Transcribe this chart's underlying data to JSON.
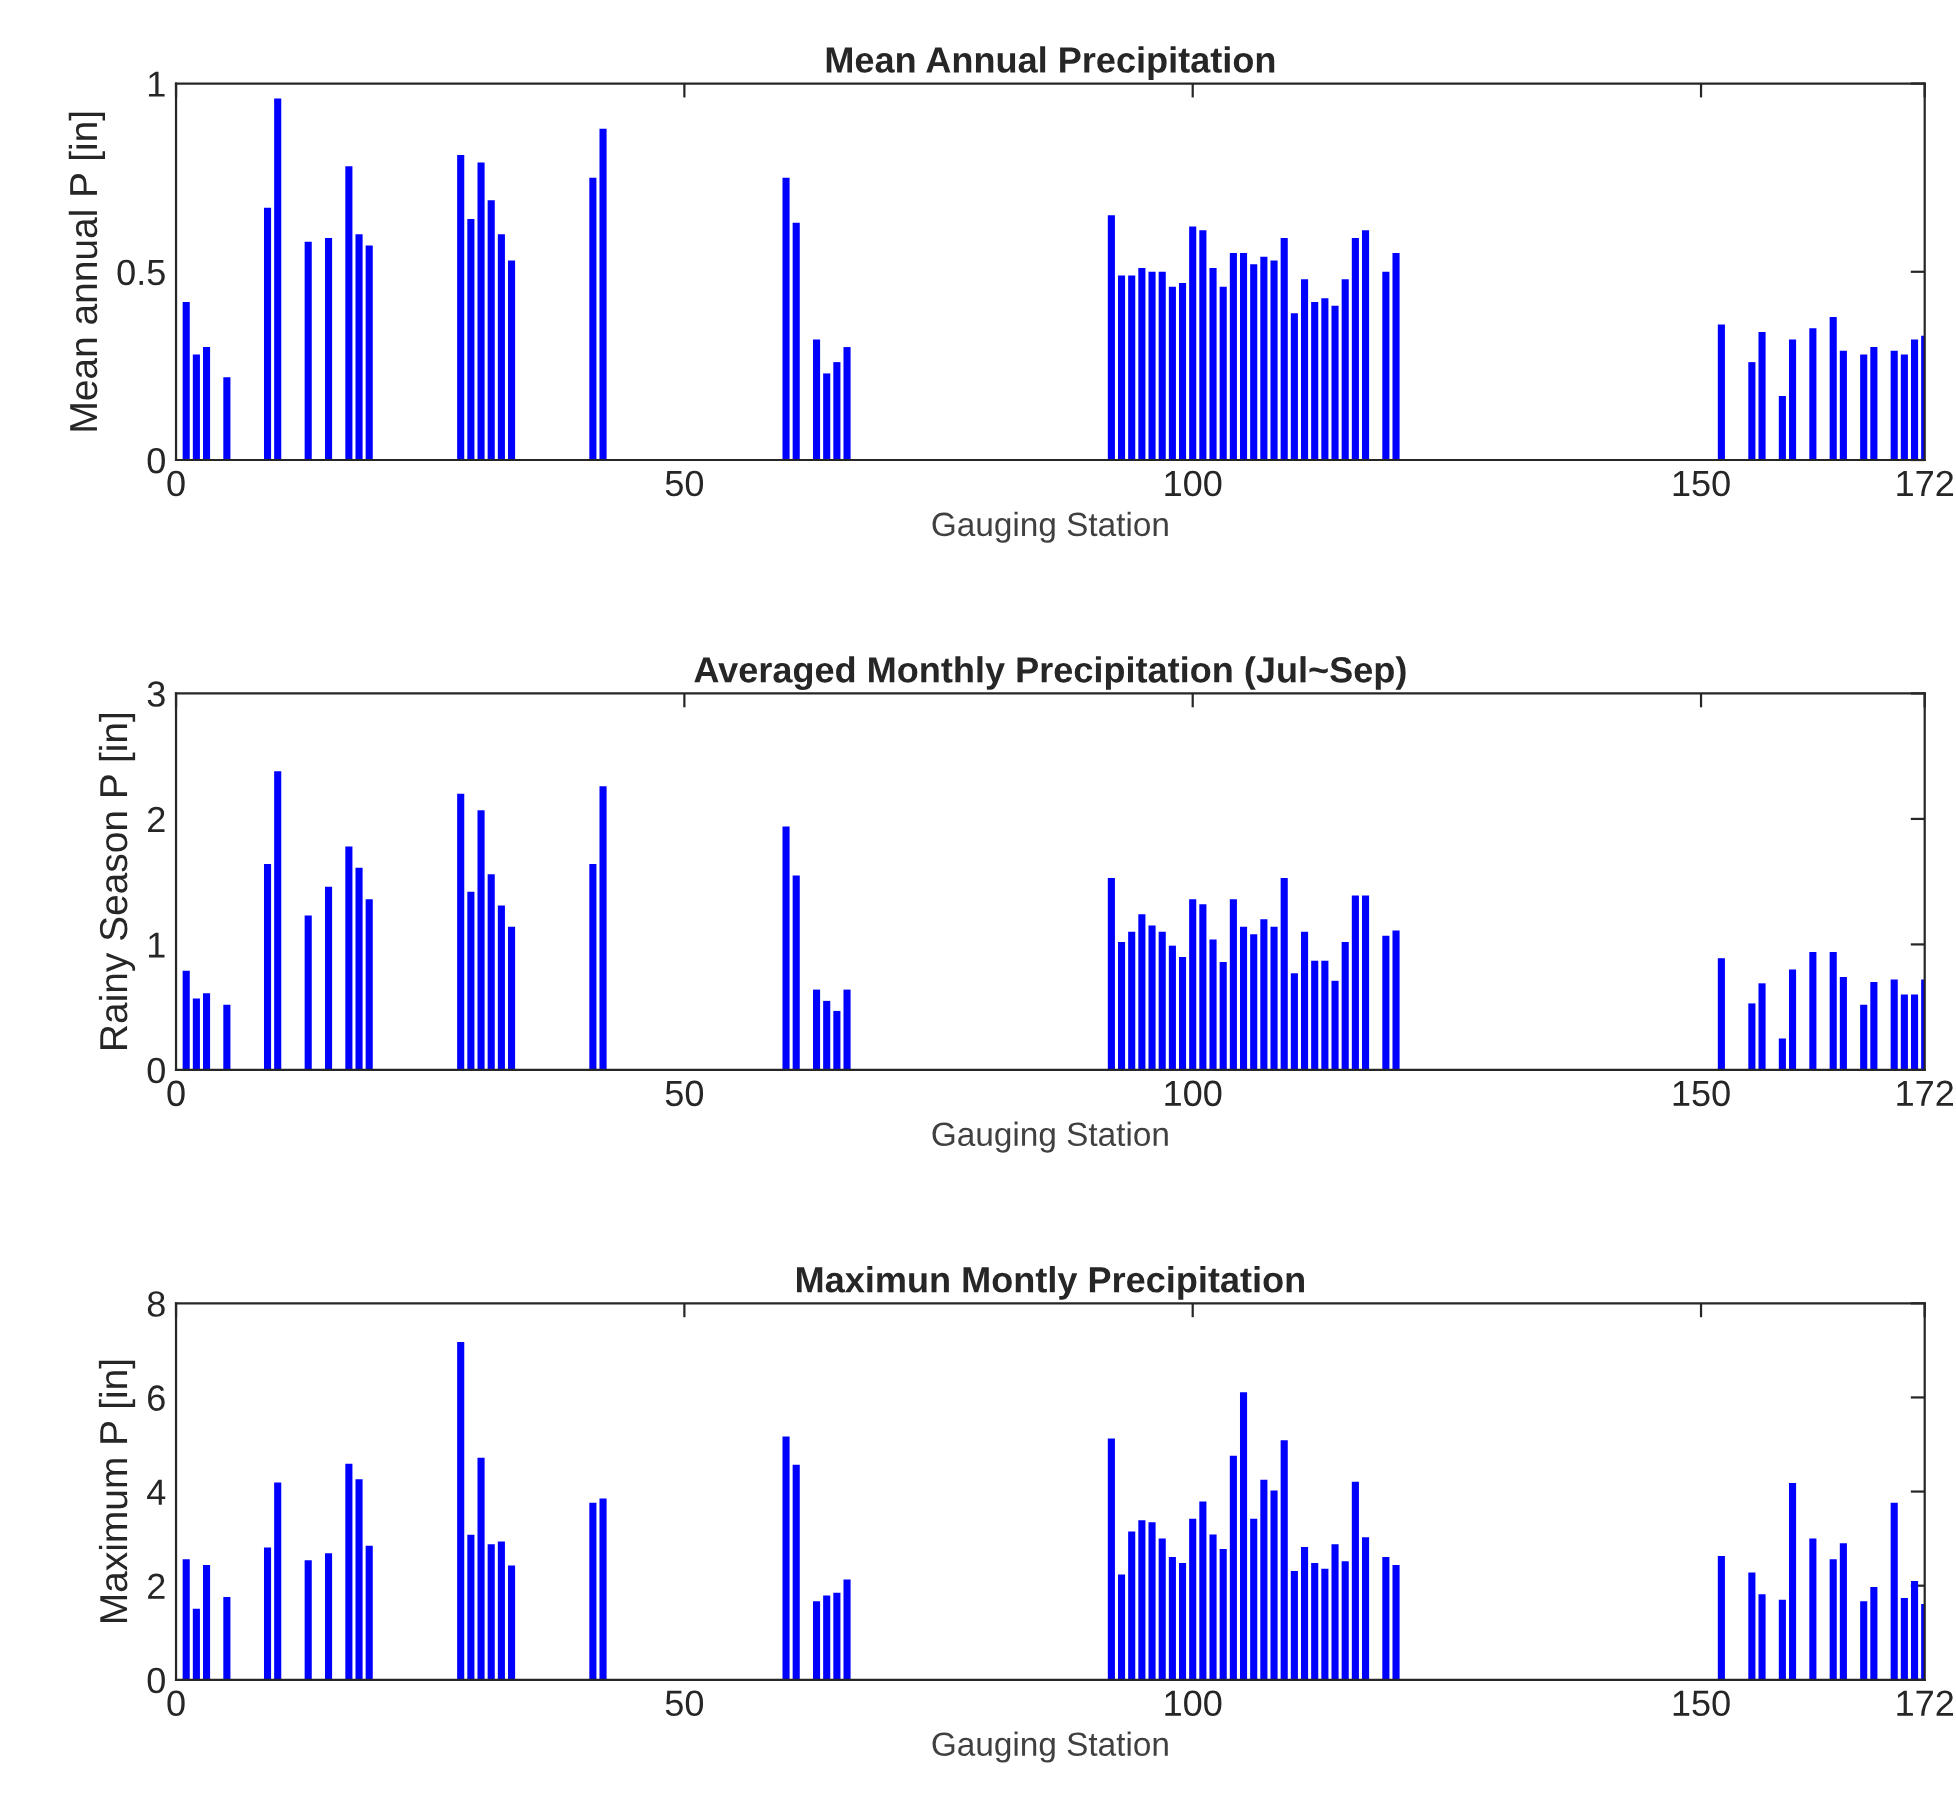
{
  "chart_data": [
    {
      "type": "bar",
      "title": "Mean Annual Precipitation",
      "xlabel": "Gauging Station",
      "ylabel": "Mean annual P [in]",
      "color": "#0000ff",
      "xlim": [
        0,
        172
      ],
      "xticks": [
        0,
        50,
        100,
        150,
        172
      ],
      "ylim": [
        0,
        1
      ],
      "yticks": [
        0,
        0.5,
        1
      ],
      "grid": false,
      "x": [
        1,
        2,
        3,
        5,
        9,
        10,
        13,
        15,
        17,
        18,
        19,
        28,
        29,
        30,
        31,
        32,
        33,
        41,
        42,
        60,
        61,
        63,
        64,
        65,
        66,
        92,
        93,
        94,
        95,
        96,
        97,
        98,
        99,
        100,
        101,
        102,
        103,
        104,
        105,
        106,
        107,
        108,
        109,
        110,
        111,
        112,
        113,
        114,
        115,
        116,
        117,
        119,
        120,
        152,
        155,
        156,
        158,
        159,
        161,
        163,
        164,
        166,
        167,
        169,
        170,
        171,
        172
      ],
      "values": [
        0.42,
        0.28,
        0.3,
        0.22,
        0.67,
        0.96,
        0.58,
        0.59,
        0.78,
        0.6,
        0.57,
        0.81,
        0.64,
        0.79,
        0.69,
        0.6,
        0.53,
        0.75,
        0.88,
        0.75,
        0.63,
        0.32,
        0.23,
        0.26,
        0.3,
        0.65,
        0.49,
        0.49,
        0.51,
        0.5,
        0.5,
        0.46,
        0.47,
        0.62,
        0.61,
        0.51,
        0.46,
        0.55,
        0.55,
        0.52,
        0.54,
        0.53,
        0.59,
        0.39,
        0.48,
        0.42,
        0.43,
        0.41,
        0.48,
        0.59,
        0.61,
        0.5,
        0.55,
        0.36,
        0.26,
        0.34,
        0.17,
        0.32,
        0.35,
        0.38,
        0.29,
        0.28,
        0.3,
        0.29,
        0.28,
        0.32,
        0.33
      ]
    },
    {
      "type": "bar",
      "title": "Averaged Monthly Precipitation (Jul~Sep)",
      "xlabel": "Gauging Station",
      "ylabel": "Rainy Season P [in]",
      "color": "#0000ff",
      "xlim": [
        0,
        172
      ],
      "xticks": [
        0,
        50,
        100,
        150,
        172
      ],
      "ylim": [
        0,
        3
      ],
      "yticks": [
        0,
        1,
        2,
        3
      ],
      "grid": false,
      "x": [
        1,
        2,
        3,
        5,
        9,
        10,
        13,
        15,
        17,
        18,
        19,
        28,
        29,
        30,
        31,
        32,
        33,
        41,
        42,
        60,
        61,
        63,
        64,
        65,
        66,
        92,
        93,
        94,
        95,
        96,
        97,
        98,
        99,
        100,
        101,
        102,
        103,
        104,
        105,
        106,
        107,
        108,
        109,
        110,
        111,
        112,
        113,
        114,
        115,
        116,
        117,
        119,
        120,
        152,
        155,
        156,
        158,
        159,
        161,
        163,
        164,
        166,
        167,
        169,
        170,
        171,
        172
      ],
      "values": [
        0.79,
        0.57,
        0.61,
        0.52,
        1.64,
        2.38,
        1.23,
        1.46,
        1.78,
        1.61,
        1.36,
        2.2,
        1.42,
        2.07,
        1.56,
        1.31,
        1.14,
        1.64,
        2.26,
        1.94,
        1.55,
        0.64,
        0.55,
        0.47,
        0.64,
        1.53,
        1.02,
        1.1,
        1.24,
        1.15,
        1.1,
        0.99,
        0.9,
        1.36,
        1.32,
        1.04,
        0.86,
        1.36,
        1.14,
        1.08,
        1.2,
        1.14,
        1.53,
        0.77,
        1.1,
        0.87,
        0.87,
        0.71,
        1.02,
        1.39,
        1.39,
        1.07,
        1.11,
        0.89,
        0.53,
        0.69,
        0.25,
        0.8,
        0.94,
        0.94,
        0.74,
        0.52,
        0.7,
        0.72,
        0.6,
        0.6,
        0.72
      ]
    },
    {
      "type": "bar",
      "title": "Maximun Montly Precipitation",
      "xlabel": "Gauging Station",
      "ylabel": "Maximum P [in]",
      "color": "#0000ff",
      "xlim": [
        0,
        172
      ],
      "xticks": [
        0,
        50,
        100,
        150,
        172
      ],
      "ylim": [
        0,
        8
      ],
      "yticks": [
        0,
        2,
        4,
        6,
        8
      ],
      "grid": false,
      "x": [
        1,
        2,
        3,
        5,
        9,
        10,
        13,
        15,
        17,
        18,
        19,
        28,
        29,
        30,
        31,
        32,
        33,
        41,
        42,
        60,
        61,
        63,
        64,
        65,
        66,
        92,
        93,
        94,
        95,
        96,
        97,
        98,
        99,
        100,
        101,
        102,
        103,
        104,
        105,
        106,
        107,
        108,
        109,
        110,
        111,
        112,
        113,
        114,
        115,
        116,
        117,
        119,
        120,
        152,
        155,
        156,
        158,
        159,
        161,
        163,
        164,
        166,
        167,
        169,
        170,
        171,
        172
      ],
      "values": [
        2.56,
        1.51,
        2.44,
        1.76,
        2.81,
        4.19,
        2.54,
        2.69,
        4.59,
        4.26,
        2.85,
        7.18,
        3.08,
        4.72,
        2.88,
        2.94,
        2.43,
        3.76,
        3.85,
        5.17,
        4.57,
        1.67,
        1.79,
        1.85,
        2.13,
        5.13,
        2.24,
        3.15,
        3.39,
        3.35,
        3.0,
        2.61,
        2.48,
        3.42,
        3.79,
        3.09,
        2.78,
        4.76,
        6.11,
        3.42,
        4.25,
        4.02,
        5.09,
        2.31,
        2.82,
        2.48,
        2.36,
        2.88,
        2.52,
        4.21,
        3.03,
        2.61,
        2.44,
        2.63,
        2.28,
        1.82,
        1.7,
        4.18,
        3.0,
        2.56,
        2.9,
        1.67,
        1.97,
        3.76,
        1.74,
        2.1,
        1.61
      ]
    }
  ]
}
